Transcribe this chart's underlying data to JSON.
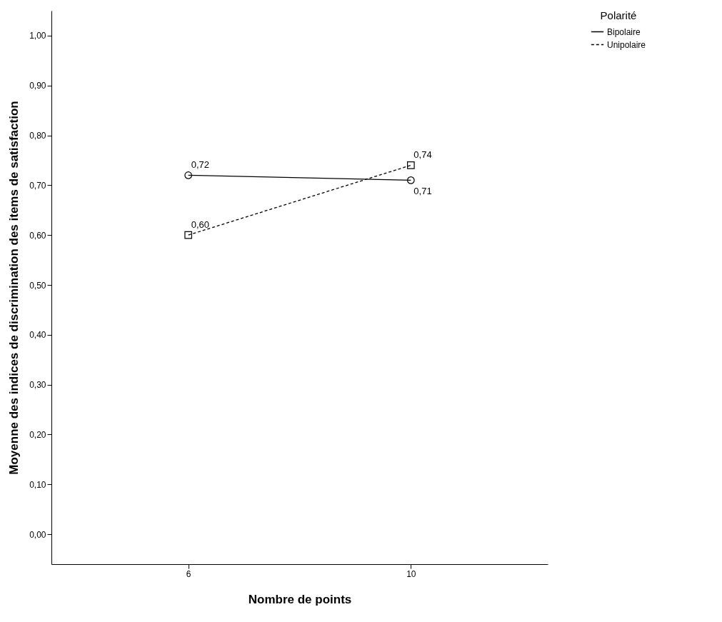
{
  "chart_data": {
    "type": "line",
    "xlabel": "Nombre de points",
    "ylabel": "Moyenne des indices de discrimination des items de satisfaction",
    "legend_title": "Polarité",
    "categories": [
      "6",
      "10"
    ],
    "series": [
      {
        "name": "Bipolaire",
        "color": "#000000",
        "values": [
          0.72,
          0.71
        ],
        "value_labels": [
          "0,72",
          "0,71"
        ],
        "marker": "circle",
        "line_style": "solid"
      },
      {
        "name": "Unipolaire",
        "color": "#000000",
        "values": [
          0.6,
          0.74
        ],
        "value_labels": [
          "0,60",
          "0,74"
        ],
        "marker": "square",
        "line_style": "dashed"
      }
    ],
    "ylim": [
      -0.06,
      1.05
    ],
    "yticks": [
      {
        "value": 0,
        "label": "0,00"
      },
      {
        "value": 0.1,
        "label": "0,10"
      },
      {
        "value": 0.2,
        "label": "0,20"
      },
      {
        "value": 0.3,
        "label": "0,30"
      },
      {
        "value": 0.4,
        "label": "0,40"
      },
      {
        "value": 0.5,
        "label": "0,50"
      },
      {
        "value": 0.6,
        "label": "0,60"
      },
      {
        "value": 0.7,
        "label": "0,70"
      },
      {
        "value": 0.8,
        "label": "0,80"
      },
      {
        "value": 0.9,
        "label": "0,90"
      },
      {
        "value": 1,
        "label": "1,00"
      }
    ],
    "grid": false,
    "legend": "top right"
  }
}
